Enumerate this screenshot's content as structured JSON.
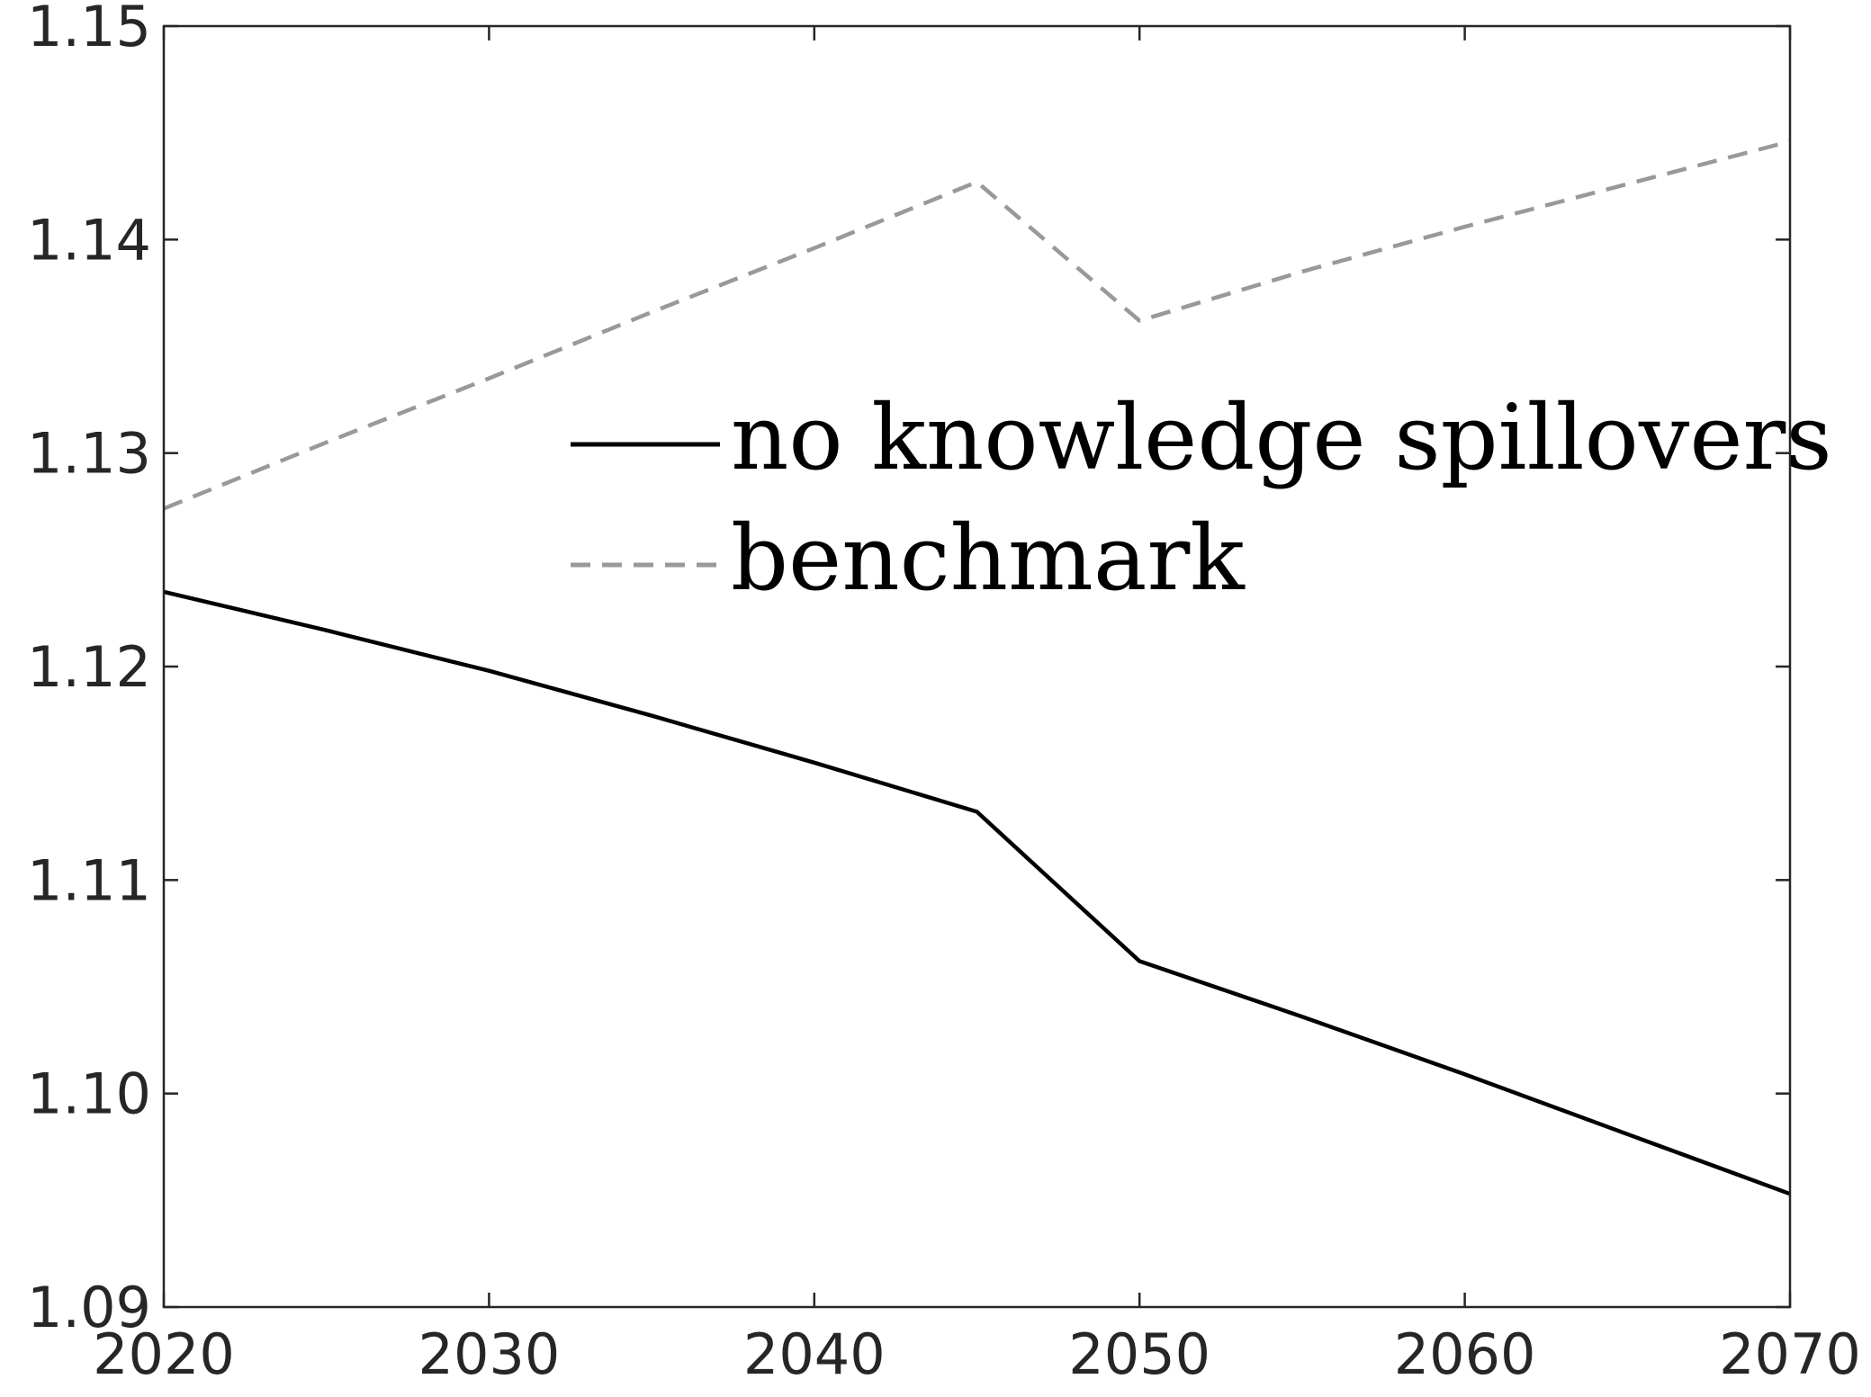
{
  "chart_data": {
    "type": "line",
    "title": "",
    "xlabel": "",
    "ylabel": "",
    "xlim": [
      2020,
      2070
    ],
    "ylim": [
      1.09,
      1.15
    ],
    "xticks": [
      2020,
      2030,
      2040,
      2050,
      2060,
      2070
    ],
    "xtick_labels": [
      "2020",
      "2030",
      "2040",
      "2050",
      "2060",
      "2070"
    ],
    "yticks": [
      1.09,
      1.1,
      1.11,
      1.12,
      1.13,
      1.14,
      1.15
    ],
    "ytick_labels": [
      "1.09",
      "1.10",
      "1.11",
      "1.12",
      "1.13",
      "1.14",
      "1.15"
    ],
    "grid": false,
    "legend_position": "upper-middle-right",
    "series": [
      {
        "name": "no knowledge spillovers",
        "color": "#000000",
        "style": "solid",
        "x": [
          2020,
          2025,
          2030,
          2035,
          2040,
          2045,
          2050,
          2055,
          2060,
          2065,
          2070
        ],
        "y": [
          1.1235,
          1.1217,
          1.1198,
          1.1177,
          1.1155,
          1.1132,
          1.1062,
          1.1036,
          1.1009,
          1.0981,
          1.0953
        ]
      },
      {
        "name": "benchmark",
        "color": "#999999",
        "style": "dashed",
        "x": [
          2020,
          2025,
          2030,
          2035,
          2040,
          2045,
          2050,
          2055,
          2060,
          2065,
          2070
        ],
        "y": [
          1.1274,
          1.1305,
          1.1335,
          1.1366,
          1.1396,
          1.1427,
          1.1362,
          1.1385,
          1.1406,
          1.1426,
          1.1446
        ]
      }
    ]
  }
}
